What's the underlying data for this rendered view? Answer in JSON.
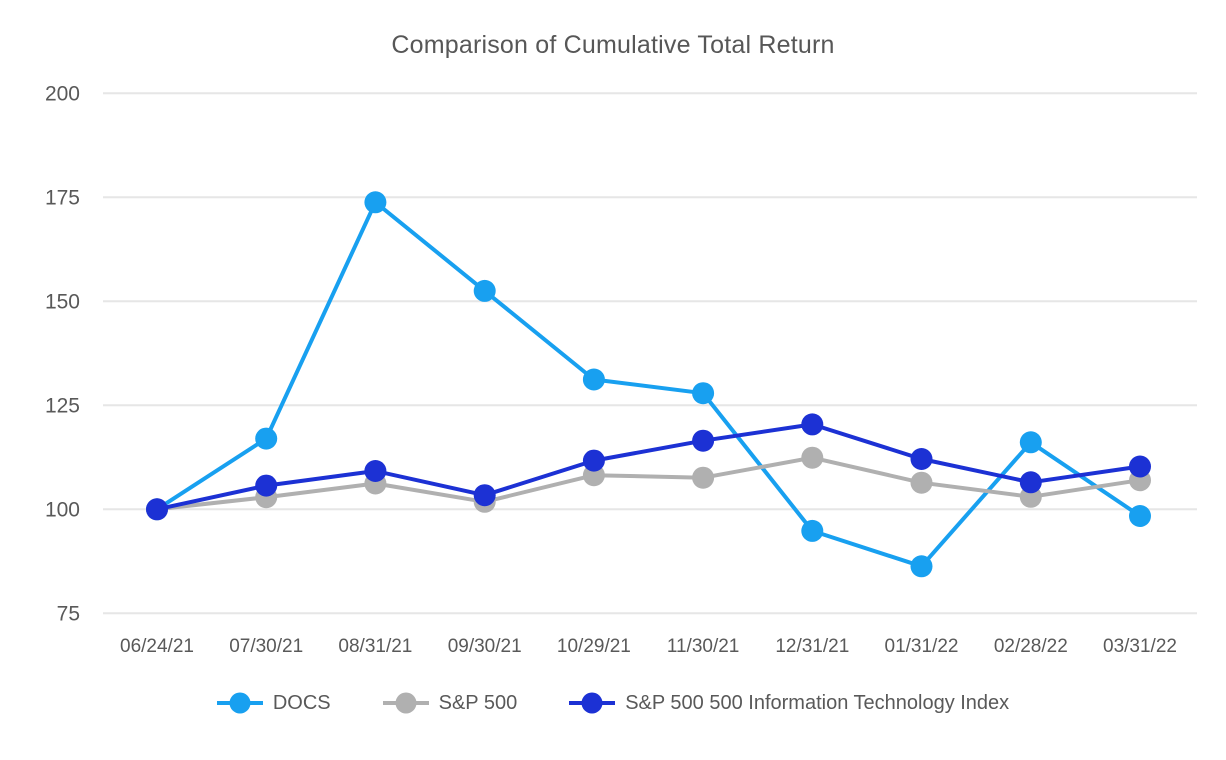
{
  "chart_data": {
    "type": "line",
    "title": "Comparison of Cumulative Total Return",
    "xlabel": "",
    "ylabel": "",
    "x_tick_labels": [
      "06/24/21",
      "07/30/21",
      "08/31/21",
      "09/30/21",
      "10/29/21",
      "11/30/21",
      "12/31/21",
      "01/31/22",
      "02/28/22",
      "03/31/22"
    ],
    "y_ticks": [
      200,
      175,
      150,
      125,
      100,
      75
    ],
    "ylim": [
      75,
      200
    ],
    "grid": "horizontal-only",
    "legend_position": "bottom",
    "series": [
      {
        "name": "DOCS",
        "color": "#18A0F0",
        "values": [
          100.0,
          117.0,
          173.8,
          152.5,
          131.2,
          127.9,
          94.8,
          86.3,
          116.1,
          98.4
        ]
      },
      {
        "name": "S&P 500",
        "color": "#B0B0B0",
        "values": [
          100.0,
          102.9,
          106.2,
          101.8,
          108.2,
          107.6,
          112.4,
          106.4,
          103.0,
          107.0
        ]
      },
      {
        "name": "S&P 500 500 Information Technology Index",
        "color": "#1C31D4",
        "values": [
          100.0,
          105.7,
          109.2,
          103.4,
          111.7,
          116.5,
          120.4,
          112.1,
          106.5,
          110.3
        ]
      }
    ]
  },
  "style": {
    "gridline_color": "#E6E6E6",
    "axis_text_color": "#595959",
    "title_color": "#575757",
    "background_color": "#FFFFFF"
  }
}
